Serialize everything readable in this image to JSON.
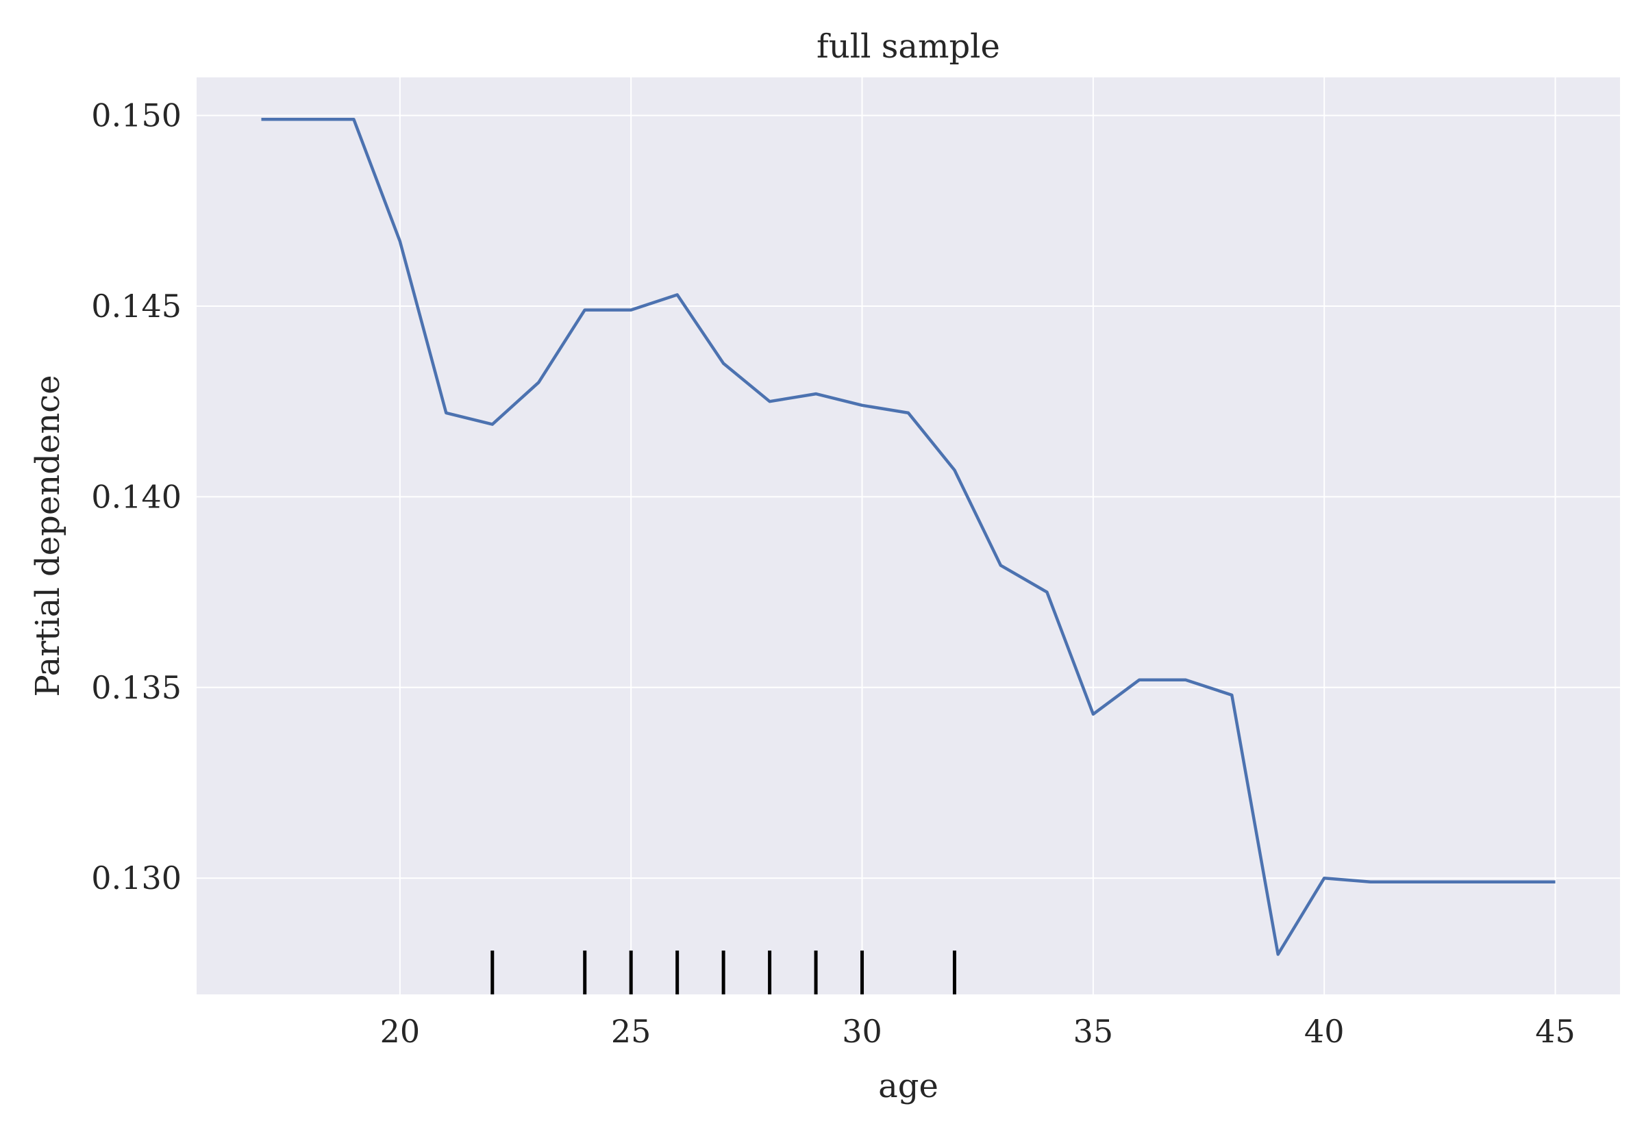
{
  "chart_data": {
    "type": "line",
    "title": "full sample",
    "xlabel": "age",
    "ylabel": "Partial dependence",
    "xlim": [
      15.6,
      46.4
    ],
    "ylim": [
      0.12695,
      0.151
    ],
    "xticks": [
      20,
      25,
      30,
      35,
      40,
      45
    ],
    "yticks": [
      0.13,
      0.135,
      0.14,
      0.145,
      0.15
    ],
    "ytick_labels": [
      "0.130",
      "0.135",
      "0.140",
      "0.145",
      "0.150"
    ],
    "grid": true,
    "series": [
      {
        "color": "#4c72b0",
        "x": [
          17,
          18,
          19,
          20,
          21,
          22,
          23,
          24,
          25,
          26,
          27,
          28,
          29,
          30,
          31,
          32,
          33,
          34,
          35,
          36,
          37,
          38,
          39,
          40,
          41,
          42,
          43,
          44,
          45
        ],
        "y": [
          0.1499,
          0.1499,
          0.1499,
          0.1467,
          0.1422,
          0.1419,
          0.143,
          0.1449,
          0.1449,
          0.1453,
          0.1435,
          0.1425,
          0.1427,
          0.1424,
          0.1422,
          0.1407,
          0.1382,
          0.1375,
          0.1343,
          0.1352,
          0.1352,
          0.1348,
          0.128,
          0.13,
          0.1299,
          0.1299,
          0.1299,
          0.1299,
          0.1299
        ]
      }
    ],
    "rug": {
      "color": "#000000",
      "x": [
        22,
        24,
        25,
        26,
        27,
        28,
        29,
        30,
        32
      ]
    },
    "colors": {
      "background": "#eaeaf2",
      "grid": "#ffffff",
      "text": "#262626"
    }
  }
}
